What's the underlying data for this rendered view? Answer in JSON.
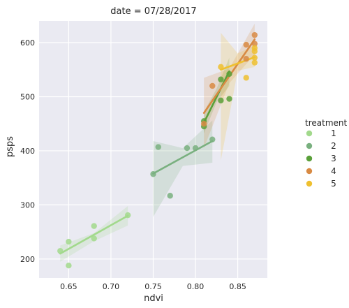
{
  "chart_data": {
    "type": "scatter",
    "title": "date = 07/28/2017",
    "xlabel": "ndvi",
    "ylabel": "psps",
    "xlim": [
      0.615,
      0.885
    ],
    "ylim": [
      165,
      640
    ],
    "xticks": [
      0.65,
      0.7,
      0.75,
      0.8,
      0.85
    ],
    "xtick_labels": [
      "0.65",
      "0.70",
      "0.75",
      "0.80",
      "0.85"
    ],
    "yticks": [
      200,
      300,
      400,
      500,
      600
    ],
    "ytick_labels": [
      "200",
      "300",
      "400",
      "500",
      "600"
    ],
    "grid": true,
    "background": "#eaeaf2",
    "legend": {
      "title": "treatment",
      "position": "right"
    },
    "series": [
      {
        "name": "1",
        "color": "#a2d98c",
        "points": [
          [
            0.64,
            215
          ],
          [
            0.65,
            232
          ],
          [
            0.65,
            188
          ],
          [
            0.68,
            261
          ],
          [
            0.68,
            238
          ],
          [
            0.72,
            281
          ]
        ],
        "fit": [
          [
            0.64,
            210
          ],
          [
            0.72,
            280
          ]
        ],
        "band": [
          [
            0.64,
            195,
            225
          ],
          [
            0.68,
            233,
            248
          ],
          [
            0.72,
            262,
            298
          ]
        ]
      },
      {
        "name": "2",
        "color": "#79b07f",
        "points": [
          [
            0.75,
            357
          ],
          [
            0.756,
            407
          ],
          [
            0.77,
            317
          ],
          [
            0.79,
            405
          ],
          [
            0.8,
            405
          ],
          [
            0.82,
            421
          ]
        ],
        "fit": [
          [
            0.75,
            358
          ],
          [
            0.82,
            418
          ]
        ],
        "band": [
          [
            0.75,
            278,
            418
          ],
          [
            0.785,
            372,
            405
          ],
          [
            0.82,
            378,
            456
          ]
        ]
      },
      {
        "name": "3",
        "color": "#5aa03a",
        "points": [
          [
            0.81,
            445
          ],
          [
            0.81,
            455
          ],
          [
            0.83,
            493
          ],
          [
            0.83,
            532
          ],
          [
            0.84,
            542
          ],
          [
            0.84,
            496
          ]
        ],
        "fit": [
          [
            0.81,
            452
          ],
          [
            0.84,
            547
          ]
        ],
        "band": [
          [
            0.81,
            432,
            472
          ],
          [
            0.825,
            490,
            515
          ],
          [
            0.84,
            520,
            572
          ]
        ]
      },
      {
        "name": "4",
        "color": "#d88a43",
        "points": [
          [
            0.81,
            450
          ],
          [
            0.82,
            520
          ],
          [
            0.86,
            596
          ],
          [
            0.87,
            614
          ],
          [
            0.87,
            598
          ],
          [
            0.86,
            570
          ]
        ],
        "fit": [
          [
            0.81,
            470
          ],
          [
            0.87,
            606
          ]
        ],
        "band": [
          [
            0.81,
            405,
            535
          ],
          [
            0.84,
            525,
            552
          ],
          [
            0.87,
            578,
            635
          ]
        ]
      },
      {
        "name": "5",
        "color": "#efc02f",
        "points": [
          [
            0.83,
            555
          ],
          [
            0.86,
            535
          ],
          [
            0.87,
            590
          ],
          [
            0.87,
            563
          ],
          [
            0.87,
            572
          ],
          [
            0.87,
            584
          ]
        ],
        "fit": [
          [
            0.83,
            550
          ],
          [
            0.87,
            573
          ]
        ],
        "band": [
          [
            0.83,
            382,
            618
          ],
          [
            0.85,
            548,
            580
          ],
          [
            0.87,
            555,
            595
          ]
        ]
      }
    ]
  }
}
